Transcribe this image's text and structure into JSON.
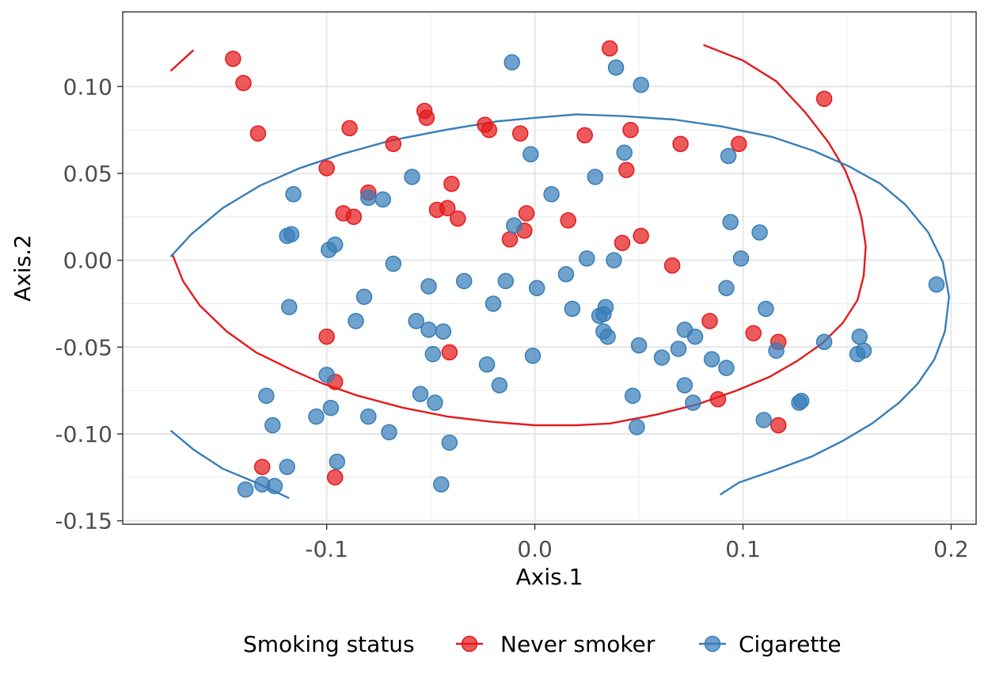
{
  "chart_data": {
    "type": "scatter",
    "xlabel": "Axis.1",
    "ylabel": "Axis.2",
    "xlim": [
      -0.198,
      0.212
    ],
    "ylim": [
      -0.152,
      0.143
    ],
    "x_ticks": [
      -0.1,
      0.0,
      0.1,
      0.2
    ],
    "x_tick_labels": [
      "-0.1",
      "0.0",
      "0.1",
      "0.2"
    ],
    "y_ticks": [
      -0.15,
      -0.1,
      -0.05,
      0.0,
      0.05,
      0.1
    ],
    "y_tick_labels": [
      "-0.15",
      "-0.10",
      "-0.05",
      "0.00",
      "0.05",
      "0.10"
    ],
    "grid": true,
    "legend": {
      "title": "Smoking status",
      "position": "bottom"
    },
    "series": [
      {
        "name": "Never smoker",
        "color": "#E41A1C",
        "points": [
          [
            -0.145,
            0.116
          ],
          [
            -0.14,
            0.102
          ],
          [
            -0.133,
            0.073
          ],
          [
            0.036,
            0.122
          ],
          [
            0.139,
            0.093
          ],
          [
            -0.053,
            0.086
          ],
          [
            -0.052,
            0.082
          ],
          [
            -0.089,
            0.076
          ],
          [
            -0.024,
            0.078
          ],
          [
            -0.022,
            0.075
          ],
          [
            -0.007,
            0.073
          ],
          [
            0.024,
            0.072
          ],
          [
            0.046,
            0.075
          ],
          [
            -0.068,
            0.067
          ],
          [
            0.07,
            0.067
          ],
          [
            0.098,
            0.067
          ],
          [
            -0.1,
            0.053
          ],
          [
            0.044,
            0.052
          ],
          [
            -0.04,
            0.044
          ],
          [
            -0.08,
            0.039
          ],
          [
            -0.092,
            0.027
          ],
          [
            -0.087,
            0.025
          ],
          [
            -0.047,
            0.029
          ],
          [
            -0.042,
            0.03
          ],
          [
            -0.037,
            0.024
          ],
          [
            -0.004,
            0.027
          ],
          [
            -0.005,
            0.017
          ],
          [
            -0.012,
            0.012
          ],
          [
            0.016,
            0.023
          ],
          [
            0.042,
            0.01
          ],
          [
            0.051,
            0.014
          ],
          [
            0.066,
            -0.003
          ],
          [
            -0.1,
            -0.044
          ],
          [
            -0.041,
            -0.053
          ],
          [
            0.084,
            -0.035
          ],
          [
            0.105,
            -0.042
          ],
          [
            0.117,
            -0.047
          ],
          [
            -0.096,
            -0.07
          ],
          [
            0.088,
            -0.08
          ],
          [
            0.117,
            -0.095
          ],
          [
            -0.131,
            -0.119
          ],
          [
            -0.096,
            -0.125
          ]
        ]
      },
      {
        "name": "Cigarette",
        "color": "#377EB8",
        "points": [
          [
            -0.011,
            0.114
          ],
          [
            0.039,
            0.111
          ],
          [
            0.051,
            0.101
          ],
          [
            -0.002,
            0.061
          ],
          [
            0.043,
            0.062
          ],
          [
            0.093,
            0.06
          ],
          [
            -0.059,
            0.048
          ],
          [
            0.029,
            0.048
          ],
          [
            -0.116,
            0.038
          ],
          [
            -0.08,
            0.036
          ],
          [
            -0.073,
            0.035
          ],
          [
            0.008,
            0.038
          ],
          [
            -0.01,
            0.02
          ],
          [
            0.094,
            0.022
          ],
          [
            0.108,
            0.016
          ],
          [
            -0.119,
            0.014
          ],
          [
            -0.117,
            0.015
          ],
          [
            -0.099,
            0.006
          ],
          [
            -0.096,
            0.009
          ],
          [
            -0.068,
            -0.002
          ],
          [
            0.025,
            0.001
          ],
          [
            0.038,
            -0.0
          ],
          [
            0.099,
            0.001
          ],
          [
            -0.051,
            -0.015
          ],
          [
            -0.034,
            -0.012
          ],
          [
            -0.014,
            -0.012
          ],
          [
            0.001,
            -0.016
          ],
          [
            0.015,
            -0.008
          ],
          [
            0.092,
            -0.016
          ],
          [
            -0.118,
            -0.027
          ],
          [
            -0.082,
            -0.021
          ],
          [
            -0.02,
            -0.025
          ],
          [
            0.018,
            -0.028
          ],
          [
            0.034,
            -0.027
          ],
          [
            0.111,
            -0.028
          ],
          [
            -0.086,
            -0.035
          ],
          [
            -0.057,
            -0.035
          ],
          [
            -0.051,
            -0.04
          ],
          [
            -0.044,
            -0.041
          ],
          [
            0.031,
            -0.032
          ],
          [
            0.033,
            -0.031
          ],
          [
            0.033,
            -0.041
          ],
          [
            0.035,
            -0.044
          ],
          [
            0.072,
            -0.04
          ],
          [
            0.077,
            -0.044
          ],
          [
            0.05,
            -0.049
          ],
          [
            0.069,
            -0.051
          ],
          [
            0.139,
            -0.047
          ],
          [
            0.116,
            -0.052
          ],
          [
            0.156,
            -0.044
          ],
          [
            0.155,
            -0.054
          ],
          [
            0.158,
            -0.052
          ],
          [
            0.193,
            -0.014
          ],
          [
            -0.049,
            -0.054
          ],
          [
            -0.001,
            -0.055
          ],
          [
            0.061,
            -0.056
          ],
          [
            0.085,
            -0.057
          ],
          [
            0.092,
            -0.062
          ],
          [
            -0.023,
            -0.06
          ],
          [
            -0.017,
            -0.072
          ],
          [
            0.072,
            -0.072
          ],
          [
            -0.1,
            -0.066
          ],
          [
            -0.055,
            -0.077
          ],
          [
            0.047,
            -0.078
          ],
          [
            -0.129,
            -0.078
          ],
          [
            -0.048,
            -0.082
          ],
          [
            0.076,
            -0.082
          ],
          [
            0.127,
            -0.082
          ],
          [
            0.128,
            -0.081
          ],
          [
            -0.098,
            -0.085
          ],
          [
            -0.105,
            -0.09
          ],
          [
            -0.08,
            -0.09
          ],
          [
            0.11,
            -0.092
          ],
          [
            -0.126,
            -0.095
          ],
          [
            0.049,
            -0.096
          ],
          [
            -0.07,
            -0.099
          ],
          [
            -0.041,
            -0.105
          ],
          [
            -0.095,
            -0.116
          ],
          [
            -0.119,
            -0.119
          ],
          [
            -0.045,
            -0.129
          ],
          [
            -0.131,
            -0.129
          ],
          [
            -0.125,
            -0.13
          ],
          [
            -0.139,
            -0.132
          ]
        ]
      }
    ],
    "ellipses": [
      {
        "series": "Never smoker",
        "color": "#E41A1C",
        "segments": [
          [
            [
              -0.175,
              0.109
            ],
            [
              -0.164,
              0.121
            ]
          ],
          [
            [
              0.081,
              0.124
            ],
            [
              0.1,
              0.115
            ],
            [
              0.116,
              0.103
            ],
            [
              0.13,
              0.085
            ],
            [
              0.141,
              0.068
            ],
            [
              0.149,
              0.052
            ],
            [
              0.154,
              0.037
            ],
            [
              0.157,
              0.024
            ],
            [
              0.159,
              0.008
            ],
            [
              0.158,
              -0.009
            ],
            [
              0.155,
              -0.023
            ],
            [
              0.148,
              -0.036
            ],
            [
              0.138,
              -0.048
            ],
            [
              0.126,
              -0.058
            ],
            [
              0.113,
              -0.067
            ],
            [
              0.097,
              -0.075
            ],
            [
              0.078,
              -0.083
            ],
            [
              0.058,
              -0.089
            ],
            [
              0.036,
              -0.094
            ],
            [
              0.02,
              -0.095
            ],
            [
              0.0,
              -0.095
            ],
            [
              -0.021,
              -0.093
            ],
            [
              -0.042,
              -0.09
            ],
            [
              -0.063,
              -0.085
            ],
            [
              -0.085,
              -0.078
            ],
            [
              -0.102,
              -0.071
            ],
            [
              -0.117,
              -0.063
            ],
            [
              -0.134,
              -0.053
            ],
            [
              -0.148,
              -0.041
            ],
            [
              -0.161,
              -0.026
            ],
            [
              -0.169,
              -0.012
            ],
            [
              -0.174,
              0.003
            ]
          ]
        ]
      },
      {
        "series": "Cigarette",
        "color": "#377EB8",
        "segments": [
          [
            [
              -0.175,
              0.002
            ],
            [
              -0.165,
              0.015
            ],
            [
              -0.15,
              0.03
            ],
            [
              -0.132,
              0.043
            ],
            [
              -0.113,
              0.053
            ],
            [
              -0.093,
              0.061
            ],
            [
              -0.069,
              0.069
            ],
            [
              -0.043,
              0.075
            ],
            [
              -0.018,
              0.08
            ],
            [
              0.0,
              0.082
            ],
            [
              0.02,
              0.084
            ],
            [
              0.042,
              0.083
            ],
            [
              0.067,
              0.081
            ],
            [
              0.09,
              0.077
            ],
            [
              0.114,
              0.071
            ],
            [
              0.134,
              0.063
            ],
            [
              0.151,
              0.054
            ],
            [
              0.166,
              0.044
            ],
            [
              0.178,
              0.032
            ],
            [
              0.189,
              0.016
            ],
            [
              0.196,
              -0.001
            ],
            [
              0.199,
              -0.021
            ],
            [
              0.197,
              -0.041
            ],
            [
              0.192,
              -0.057
            ],
            [
              0.184,
              -0.071
            ],
            [
              0.175,
              -0.082
            ],
            [
              0.162,
              -0.094
            ],
            [
              0.148,
              -0.104
            ],
            [
              0.133,
              -0.113
            ],
            [
              0.115,
              -0.121
            ],
            [
              0.098,
              -0.128
            ],
            [
              0.089,
              -0.135
            ]
          ],
          [
            [
              -0.175,
              -0.098
            ],
            [
              -0.164,
              -0.109
            ],
            [
              -0.15,
              -0.12
            ],
            [
              -0.134,
              -0.128
            ],
            [
              -0.118,
              -0.137
            ]
          ]
        ]
      }
    ]
  }
}
